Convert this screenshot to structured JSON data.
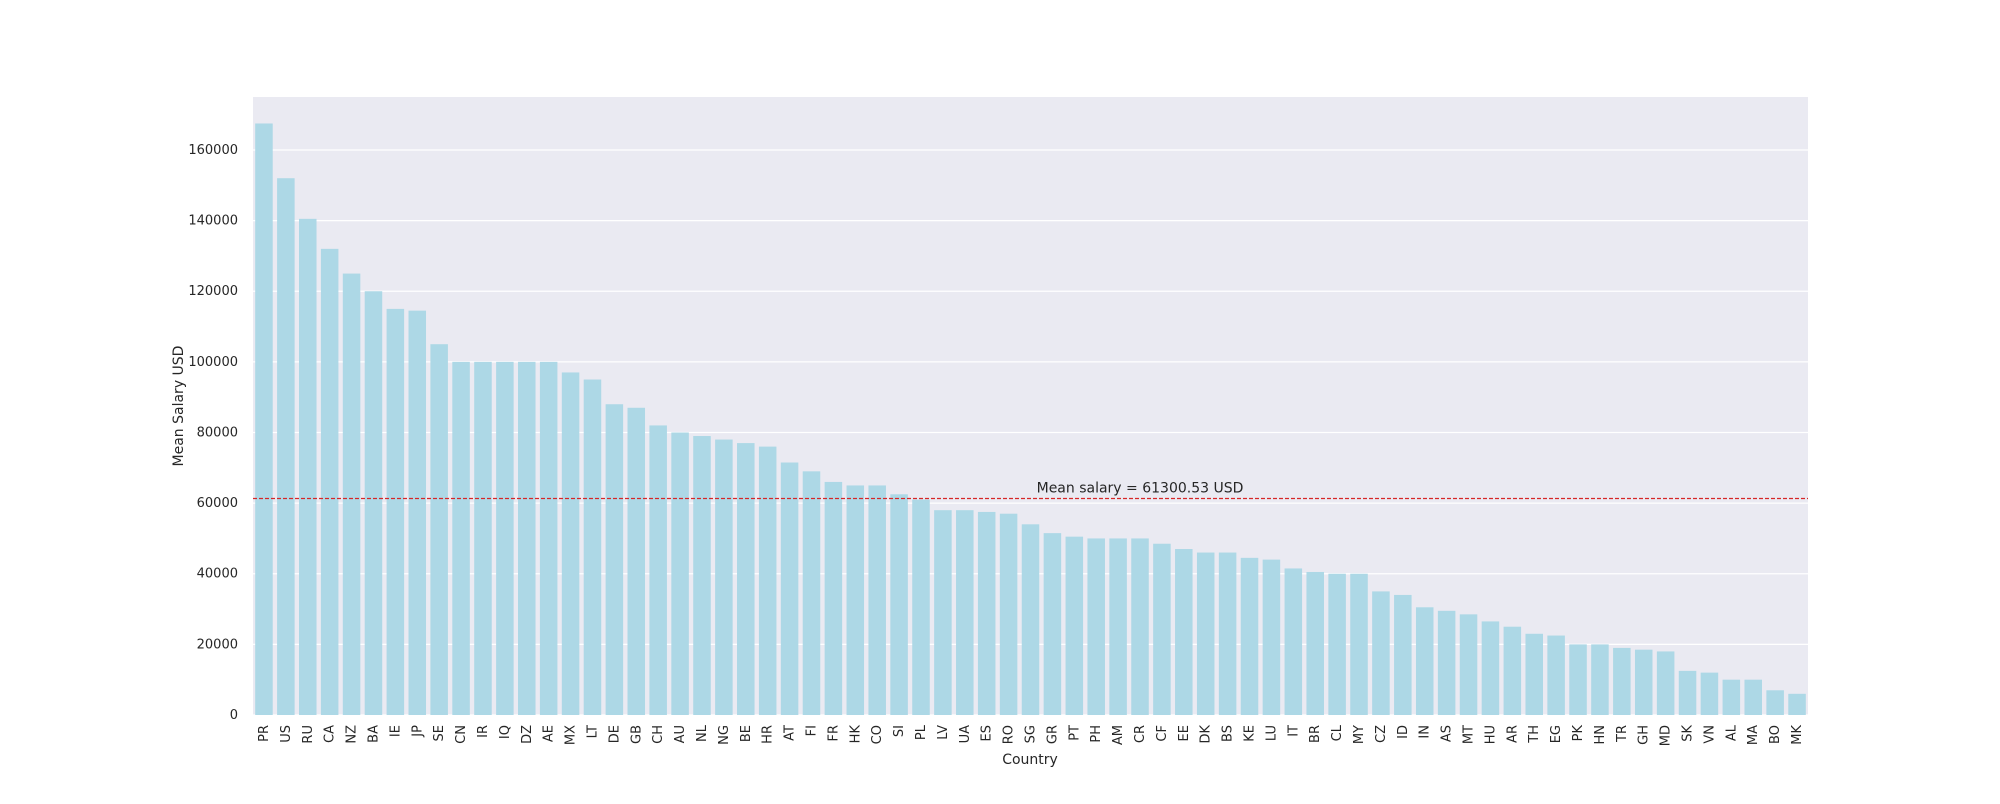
{
  "chart_data": {
    "type": "bar",
    "xlabel": "Country",
    "ylabel": "Mean Salary USD",
    "ylim": [
      0,
      175000
    ],
    "yticks": [
      0,
      20000,
      40000,
      60000,
      80000,
      100000,
      120000,
      140000,
      160000
    ],
    "grid": true,
    "categories": [
      "PR",
      "US",
      "RU",
      "CA",
      "NZ",
      "BA",
      "IE",
      "JP",
      "SE",
      "CN",
      "IR",
      "IQ",
      "DZ",
      "AE",
      "MX",
      "LT",
      "DE",
      "GB",
      "CH",
      "AU",
      "NL",
      "NG",
      "BE",
      "HR",
      "AT",
      "FI",
      "FR",
      "HK",
      "CO",
      "SI",
      "PL",
      "LV",
      "UA",
      "ES",
      "RO",
      "SG",
      "GR",
      "PT",
      "PH",
      "AM",
      "CR",
      "CF",
      "EE",
      "DK",
      "BS",
      "KE",
      "LU",
      "IT",
      "BR",
      "CL",
      "MY",
      "CZ",
      "ID",
      "IN",
      "AS",
      "MT",
      "HU",
      "AR",
      "TH",
      "EG",
      "PK",
      "HN",
      "TR",
      "GH",
      "MD",
      "SK",
      "VN",
      "AL",
      "MA",
      "BO",
      "MK"
    ],
    "values": [
      167500,
      152000,
      140500,
      132000,
      125000,
      120000,
      115000,
      114500,
      105000,
      100000,
      100000,
      100000,
      100000,
      100000,
      97000,
      95000,
      88000,
      87000,
      82000,
      80000,
      79000,
      78000,
      77000,
      76000,
      71500,
      69000,
      66000,
      65000,
      65000,
      62500,
      61000,
      58000,
      58000,
      57500,
      57000,
      54000,
      51500,
      50500,
      50000,
      50000,
      50000,
      48500,
      47000,
      46000,
      46000,
      44500,
      44000,
      41500,
      40500,
      40000,
      40000,
      35000,
      34000,
      30500,
      29500,
      28500,
      26500,
      25000,
      23000,
      22500,
      20000,
      20000,
      19000,
      18500,
      18000,
      12500,
      12000,
      10000,
      10000,
      7000,
      6000
    ],
    "bar_color": "#add8e6",
    "mean_line": {
      "value": 61300.53,
      "label": "Mean salary = 61300.53 USD",
      "color": "#d62728"
    }
  }
}
